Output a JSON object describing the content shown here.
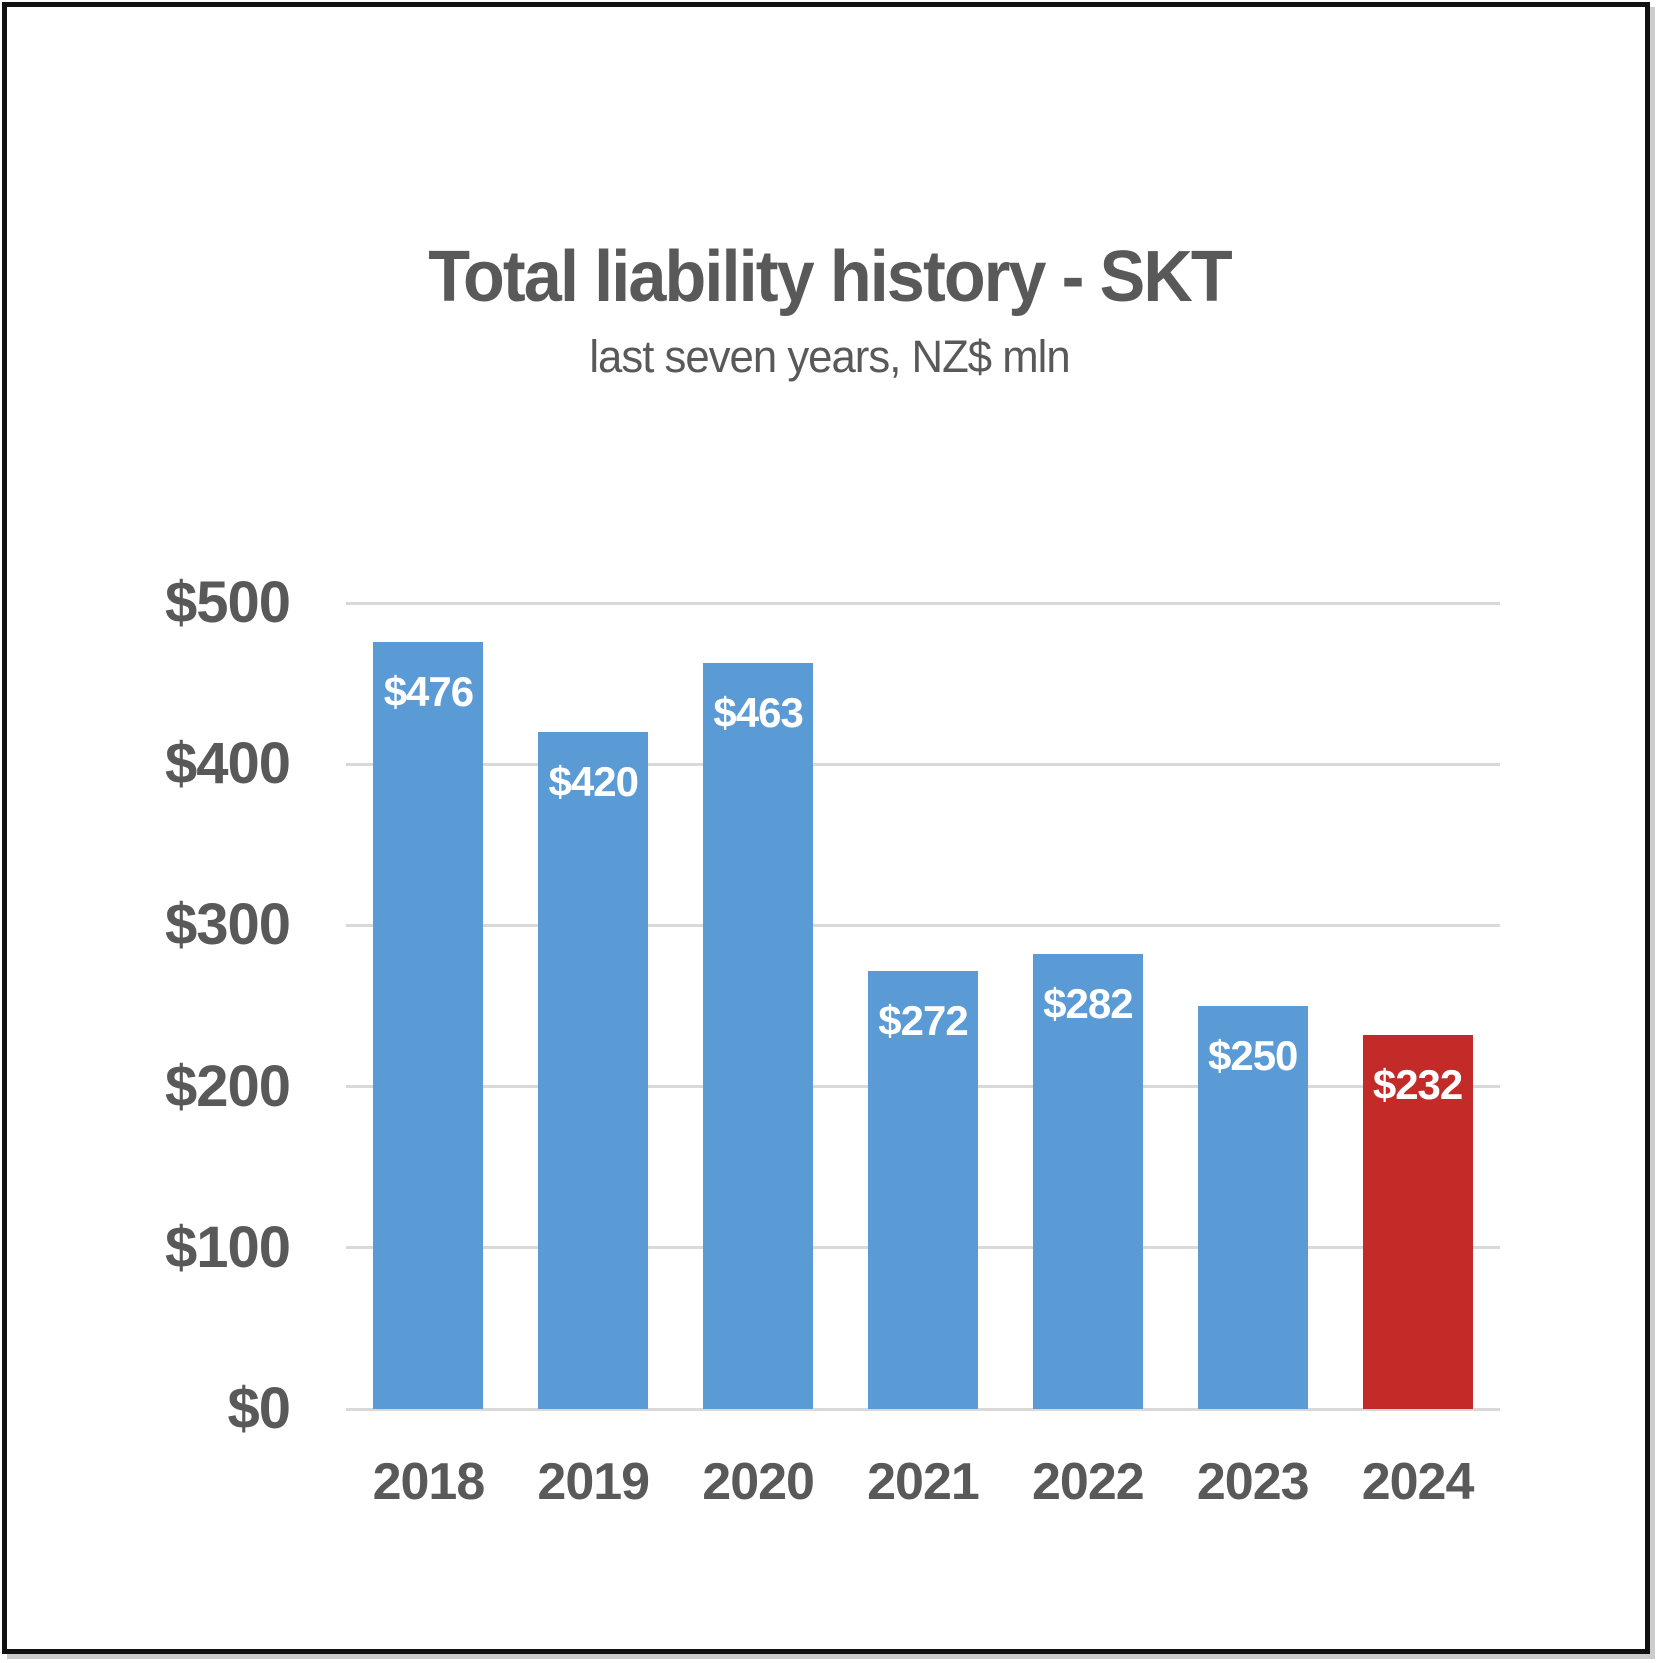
{
  "chart_data": {
    "type": "bar",
    "title": "Total liability history - SKT",
    "subtitle": "last seven years, NZ$ mln",
    "categories": [
      "2018",
      "2019",
      "2020",
      "2021",
      "2022",
      "2023",
      "2024"
    ],
    "values": [
      476,
      420,
      463,
      272,
      282,
      250,
      232
    ],
    "data_labels": [
      "$476",
      "$420",
      "$463",
      "$272",
      "$282",
      "$250",
      "$232"
    ],
    "xlabel": "",
    "ylabel": "",
    "ylim": [
      0,
      500
    ],
    "y_ticks": [
      {
        "label": "$0",
        "value": 0
      },
      {
        "label": "$100",
        "value": 100
      },
      {
        "label": "$200",
        "value": 200
      },
      {
        "label": "$300",
        "value": 300
      },
      {
        "label": "$400",
        "value": 400
      },
      {
        "label": "$500",
        "value": 500
      }
    ],
    "grid": "horizontal",
    "legend": "none",
    "highlight_index": 6
  },
  "style": {
    "bar_color": "#5B9BD5",
    "highlight_bar_color": "#C22B28",
    "grid_color": "#D9D9D9",
    "axis_text_color": "#595959",
    "title_color": "#595959",
    "bar_label_color": "#FFFFFF",
    "background_color": "#FFFFFF",
    "frame_border_color": "#111111"
  }
}
